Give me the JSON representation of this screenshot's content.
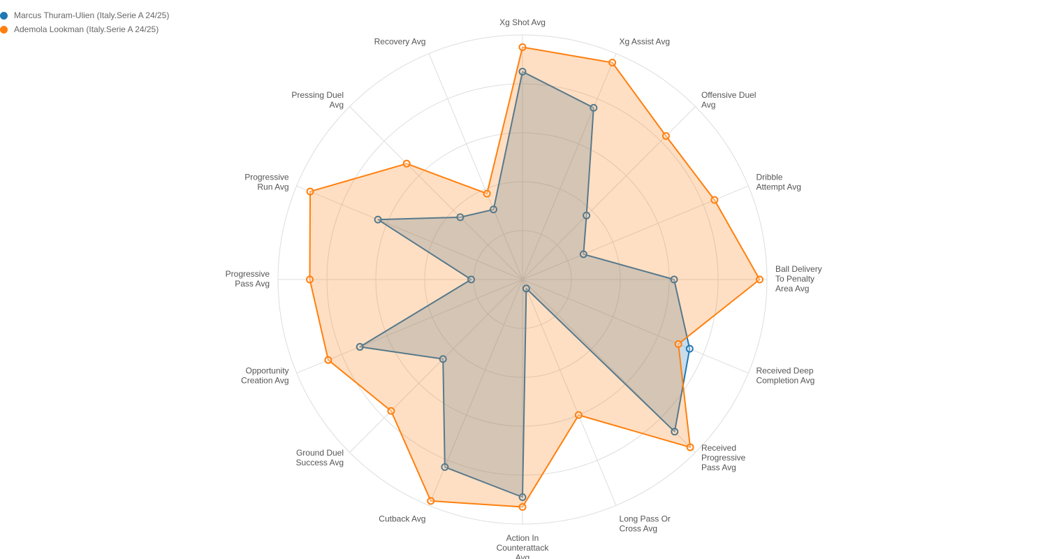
{
  "chart_data": {
    "type": "radar",
    "axes": [
      "Xg Shot Avg",
      "Xg Assist Avg",
      "Offensive Duel Avg",
      "Dribble Attempt Avg",
      "Ball Delivery To Penalty Area Avg",
      "Received Deep Completion Avg",
      "Received Progressive Pass Avg",
      "Long Pass Or Cross Avg",
      "Action In Counterattack Avg",
      "Cutback Avg",
      "Ground Duel Success Avg",
      "Opportunity Creation Avg",
      "Progressive Pass Avg",
      "Progressive Run Avg",
      "Pressing Duel Avg",
      "Recovery Avg"
    ],
    "axis_label_lines": [
      [
        "Xg Shot Avg"
      ],
      [
        "Xg Assist Avg"
      ],
      [
        "Offensive Duel",
        "Avg"
      ],
      [
        "Dribble",
        "Attempt Avg"
      ],
      [
        "Ball Delivery",
        "To Penalty",
        "Area Avg"
      ],
      [
        "Received Deep",
        "Completion Avg"
      ],
      [
        "Received",
        "Progressive",
        "Pass Avg"
      ],
      [
        "Long Pass Or",
        "Cross Avg"
      ],
      [
        "Action In",
        "Counterattack",
        "Avg"
      ],
      [
        "Cutback Avg"
      ],
      [
        "Ground Duel",
        "Success Avg"
      ],
      [
        "Opportunity",
        "Creation Avg"
      ],
      [
        "Progressive",
        "Pass Avg"
      ],
      [
        "Progressive",
        "Run Avg"
      ],
      [
        "Pressing Duel",
        "Avg"
      ],
      [
        "Recovery Avg"
      ]
    ],
    "range": [
      0,
      1
    ],
    "grid_levels": 5,
    "legend_placement": "top-left",
    "series": [
      {
        "name": "Marcus Thuram-Ulien (Italy.Serie A 24/25)",
        "color": "#1f77b4",
        "values": [
          0.85,
          0.76,
          0.37,
          0.27,
          0.62,
          0.74,
          0.88,
          0.04,
          0.89,
          0.83,
          0.46,
          0.72,
          0.21,
          0.64,
          0.36,
          0.31
        ]
      },
      {
        "name": "Ademola Lookman (Italy.Serie A 24/25)",
        "color": "#ff7f0e",
        "values": [
          0.95,
          0.96,
          0.83,
          0.85,
          0.97,
          0.69,
          0.97,
          0.6,
          0.93,
          0.98,
          0.76,
          0.86,
          0.87,
          0.94,
          0.67,
          0.38
        ]
      }
    ]
  }
}
